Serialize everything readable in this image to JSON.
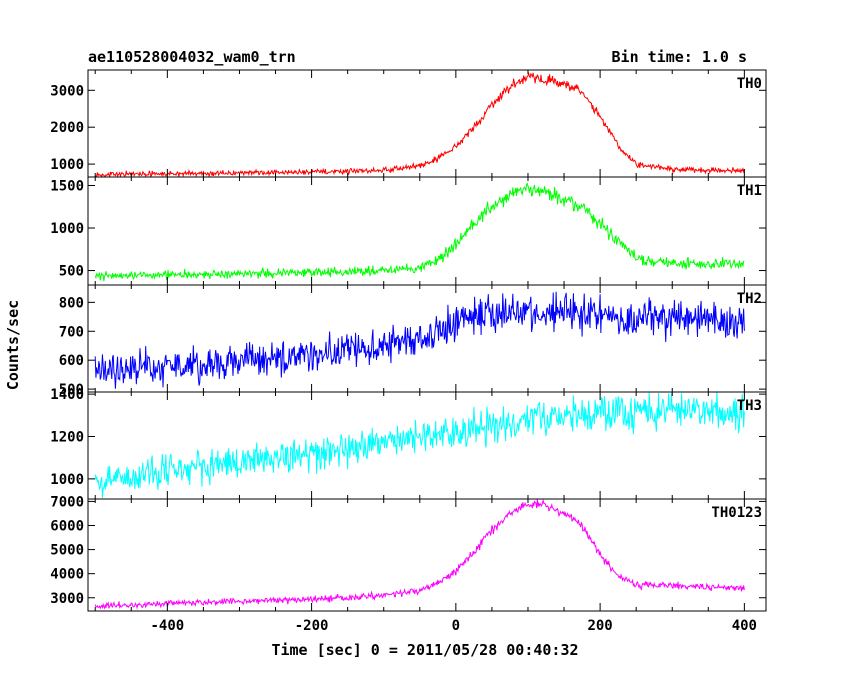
{
  "header": {
    "title": "ae110528004032_wam0_trn",
    "bin_time": "Bin time: 1.0 s"
  },
  "y_axis_label": "Counts/sec",
  "x_axis_label": "Time [sec] 0 = 2011/05/28 00:40:32",
  "chart_data": [
    {
      "type": "line",
      "name": "TH0",
      "color": "#ff0000",
      "xlim": [
        -510,
        430
      ],
      "ylim": [
        650,
        3550
      ],
      "yticks": [
        1000,
        2000,
        3000
      ],
      "x": [
        -500,
        -450,
        -400,
        -350,
        -300,
        -250,
        -200,
        -150,
        -100,
        -50,
        -25,
        0,
        25,
        50,
        75,
        100,
        125,
        150,
        175,
        200,
        225,
        250,
        300,
        350,
        400
      ],
      "y": [
        720,
        730,
        740,
        750,
        760,
        770,
        790,
        810,
        840,
        950,
        1150,
        1500,
        2000,
        2600,
        3100,
        3350,
        3300,
        3150,
        2950,
        2300,
        1500,
        1000,
        870,
        830,
        820
      ]
    },
    {
      "type": "line",
      "name": "TH1",
      "color": "#00ff00",
      "xlim": [
        -510,
        430
      ],
      "ylim": [
        330,
        1600
      ],
      "yticks": [
        500,
        1000,
        1500
      ],
      "x": [
        -500,
        -450,
        -400,
        -350,
        -300,
        -250,
        -200,
        -150,
        -100,
        -50,
        -25,
        0,
        25,
        50,
        75,
        100,
        125,
        150,
        175,
        200,
        225,
        250,
        275,
        300,
        350,
        400
      ],
      "y": [
        430,
        440,
        450,
        460,
        465,
        470,
        480,
        490,
        500,
        530,
        620,
        800,
        1050,
        1250,
        1400,
        1450,
        1420,
        1350,
        1250,
        1050,
        850,
        650,
        600,
        580,
        580,
        570
      ]
    },
    {
      "type": "line",
      "name": "TH2",
      "color": "#0000ff",
      "xlim": [
        -510,
        430
      ],
      "ylim": [
        490,
        860
      ],
      "yticks": [
        500,
        600,
        700,
        800
      ],
      "x": [
        -500,
        -450,
        -400,
        -350,
        -300,
        -250,
        -200,
        -150,
        -100,
        -50,
        0,
        50,
        100,
        150,
        200,
        250,
        300,
        350,
        400
      ],
      "y": [
        560,
        565,
        575,
        585,
        595,
        605,
        620,
        635,
        650,
        680,
        730,
        760,
        770,
        765,
        760,
        750,
        745,
        740,
        740
      ]
    },
    {
      "type": "line",
      "name": "TH3",
      "color": "#00ffff",
      "xlim": [
        -510,
        430
      ],
      "ylim": [
        905,
        1410
      ],
      "yticks": [
        1000,
        1200,
        1400
      ],
      "x": [
        -500,
        -450,
        -400,
        -350,
        -300,
        -250,
        -200,
        -150,
        -100,
        -50,
        0,
        50,
        100,
        150,
        200,
        250,
        300,
        350,
        400
      ],
      "y": [
        990,
        1010,
        1030,
        1060,
        1080,
        1100,
        1120,
        1140,
        1160,
        1190,
        1220,
        1250,
        1280,
        1300,
        1310,
        1310,
        1320,
        1320,
        1310
      ]
    },
    {
      "type": "line",
      "name": "TH0123",
      "color": "#ff00ff",
      "xlim": [
        -510,
        430
      ],
      "ylim": [
        2450,
        7100
      ],
      "yticks": [
        3000,
        4000,
        5000,
        6000,
        7000
      ],
      "xticks": [
        -400,
        -200,
        0,
        200,
        400
      ],
      "x": [
        -500,
        -450,
        -400,
        -350,
        -300,
        -250,
        -200,
        -150,
        -100,
        -50,
        -25,
        0,
        25,
        50,
        75,
        100,
        125,
        150,
        175,
        200,
        225,
        250,
        300,
        350,
        400
      ],
      "y": [
        2650,
        2700,
        2750,
        2800,
        2850,
        2900,
        2950,
        3000,
        3100,
        3300,
        3600,
        4100,
        4900,
        5800,
        6500,
        6900,
        6800,
        6500,
        6000,
        4800,
        3900,
        3550,
        3500,
        3450,
        3400
      ]
    }
  ]
}
